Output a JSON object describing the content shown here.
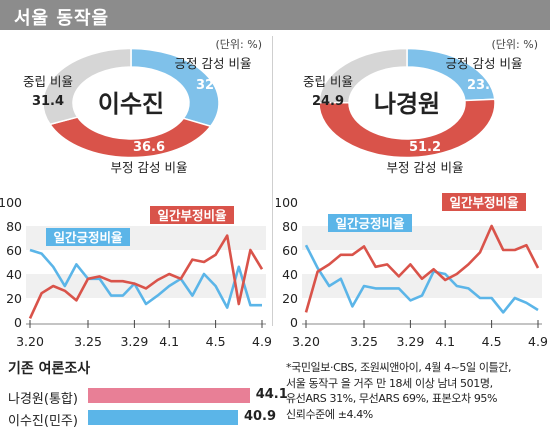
{
  "header": {
    "title": "서울 동작을"
  },
  "panels": [
    {
      "unit": "(단위: %)",
      "donut": {
        "candidate": "이수진",
        "segments": [
          {
            "label": "긍정 감성 비율",
            "value": 32.0,
            "value_text": "32.0",
            "color": "#7fc1ea"
          },
          {
            "label": "부정 감성 비율",
            "value": 36.6,
            "value_text": "36.6",
            "color": "#d9534a"
          },
          {
            "label": "중립 비율",
            "value": 31.4,
            "value_text": "31.4",
            "color": "#d6d6d6"
          }
        ]
      }
    },
    {
      "unit": "(단위: %)",
      "donut": {
        "candidate": "나경원",
        "segments": [
          {
            "label": "긍정 감성 비율",
            "value": 23.9,
            "value_text": "23.9",
            "color": "#7fc1ea"
          },
          {
            "label": "부정 감성 비율",
            "value": 51.2,
            "value_text": "51.2",
            "color": "#d9534a"
          },
          {
            "label": "중립 비율",
            "value": 24.9,
            "value_text": "24.9",
            "color": "#d6d6d6"
          }
        ]
      }
    }
  ],
  "chart_data": [
    {
      "type": "donut",
      "name": "이수진",
      "categories": [
        "긍정 감성 비율",
        "부정 감성 비율",
        "중립 비율"
      ],
      "values": [
        32.0,
        36.6,
        31.4
      ],
      "unit": "(단위: %)"
    },
    {
      "type": "donut",
      "name": "나경원",
      "categories": [
        "긍정 감성 비율",
        "부정 감성 비율",
        "중립 비율"
      ],
      "values": [
        23.9,
        51.2,
        24.9
      ],
      "unit": "(단위: %)"
    },
    {
      "type": "line",
      "ylim": [
        0,
        100
      ],
      "yticks": [
        "0",
        "20",
        "40",
        "60",
        "80",
        "100"
      ],
      "xticks": [
        "3.20",
        "3.25",
        "3.29",
        "4.1",
        "4.5",
        "4.9"
      ],
      "x": [
        "3.20",
        "3.21",
        "3.22",
        "3.23",
        "3.24",
        "3.25",
        "3.26",
        "3.27",
        "3.28",
        "3.29",
        "3.30",
        "3.31",
        "4.1",
        "4.2",
        "4.3",
        "4.4",
        "4.5",
        "4.6",
        "4.7",
        "4.8",
        "4.9"
      ],
      "series": [
        {
          "name": "일간긍정비율",
          "color": "#5bb5e8",
          "values": [
            60,
            57,
            46,
            30,
            48,
            36,
            36,
            22,
            22,
            32,
            15,
            22,
            30,
            36,
            22,
            40,
            30,
            12,
            46,
            14,
            14
          ]
        },
        {
          "name": "일간부정비율",
          "color": "#d9534a",
          "values": [
            3,
            24,
            30,
            26,
            18,
            36,
            38,
            34,
            34,
            32,
            28,
            35,
            40,
            36,
            52,
            50,
            56,
            72,
            15,
            60,
            44
          ]
        }
      ]
    },
    {
      "type": "line",
      "ylim": [
        0,
        100
      ],
      "yticks": [
        "0",
        "20",
        "40",
        "60",
        "80",
        "100"
      ],
      "xticks": [
        "3.20",
        "3.25",
        "3.29",
        "4.1",
        "4.5",
        "4.9"
      ],
      "x": [
        "3.20",
        "3.21",
        "3.22",
        "3.23",
        "3.24",
        "3.25",
        "3.26",
        "3.27",
        "3.28",
        "3.29",
        "3.30",
        "3.31",
        "4.1",
        "4.2",
        "4.3",
        "4.4",
        "4.5",
        "4.6",
        "4.7",
        "4.8",
        "4.9"
      ],
      "series": [
        {
          "name": "일간긍정비율",
          "color": "#5bb5e8",
          "values": [
            64,
            45,
            30,
            36,
            13,
            30,
            28,
            28,
            28,
            18,
            22,
            42,
            40,
            30,
            28,
            20,
            20,
            8,
            20,
            16,
            10
          ]
        },
        {
          "name": "일간부정비율",
          "color": "#d9534a",
          "values": [
            8,
            42,
            48,
            56,
            56,
            63,
            46,
            48,
            38,
            48,
            36,
            44,
            35,
            40,
            48,
            58,
            80,
            60,
            60,
            64,
            45
          ]
        }
      ]
    },
    {
      "type": "bar",
      "title": "기존 여론조사",
      "categories": [
        "나경원(통합)",
        "이수진(민주)"
      ],
      "values": [
        44.1,
        40.9
      ],
      "value_text": [
        "44.1",
        "40.9"
      ],
      "colors": [
        "#e87f96",
        "#5bb5e8"
      ]
    }
  ],
  "footnote": [
    "*국민일보·CBS, 조원씨앤아이, 4월 4~5일 이틀간,",
    "서울 동작구 을 거주 만 18세 이상 남녀 501명,",
    "유선ARS 31%, 무선ARS 69%, 표본오차 95%",
    "신뢰수준에 ±4.4%"
  ]
}
